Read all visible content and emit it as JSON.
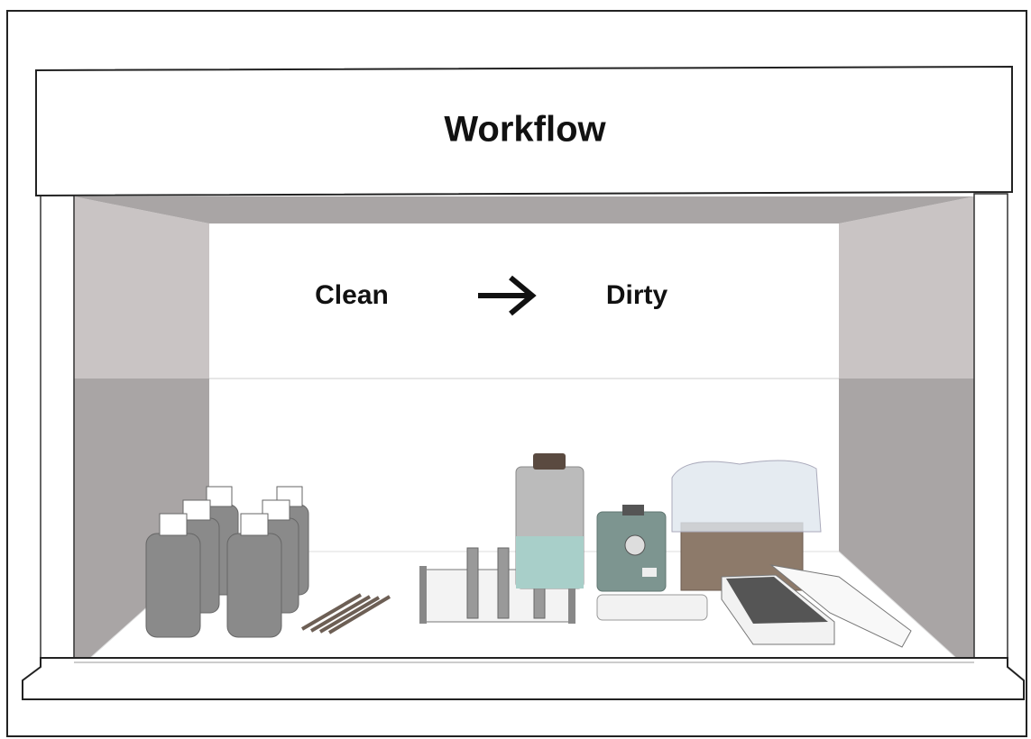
{
  "title": "Workflow",
  "flow": {
    "from": "Clean",
    "to": "Dirty"
  }
}
